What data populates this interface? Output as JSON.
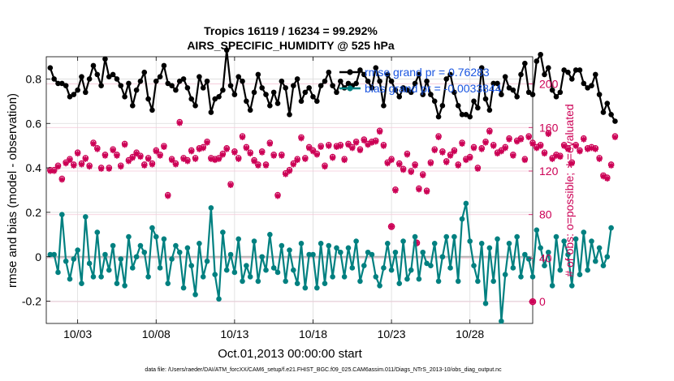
{
  "colors": {
    "rmse": "#000000",
    "bias": "#008080",
    "obs": "#cc0055",
    "grid": "#dcdcdc",
    "legend_text": "#1a55e0"
  },
  "chart_data": {
    "type": "line",
    "title_line1": "Tropics 16119 / 16234 = 99.292%",
    "title_line2": "AIRS_SPECIFIC_HUMIDITY @ 525 hPa",
    "ylabel_left": "rmse and bias (model - observation)",
    "ylabel_right": "# of obs: o=possible; ∗=evaluated",
    "xlabel": "Oct.01,2013 00:00:00 start",
    "footer": "data file: /Users/raeder/DAI/ATM_forcXX/CAM6_setup/f.e21.FHIST_BGC.f09_025.CAM6assim.011/Diags_NTrS_2013-10/obs_diag_output.nc",
    "xlim": [
      1.0,
      32.0
    ],
    "ylim_left": [
      -0.3,
      0.9
    ],
    "ylim_right": [
      -20,
      225
    ],
    "x_tick_values": [
      3,
      8,
      13,
      18,
      23,
      28
    ],
    "x_tick_labels": [
      "10/03",
      "10/08",
      "10/13",
      "10/18",
      "10/23",
      "10/28"
    ],
    "y_left_ticks": [
      -0.2,
      0,
      0.2,
      0.4,
      0.6,
      0.8
    ],
    "y_left_tick_labels": [
      "-0.2",
      "0",
      "0.2",
      "0.4",
      "0.6",
      "0.8"
    ],
    "y_right_ticks": [
      0,
      40,
      80,
      120,
      160,
      200
    ],
    "y_right_tick_labels": [
      "0",
      "40",
      "80",
      "120",
      "160",
      "200"
    ],
    "legend": [
      {
        "label": "rmse grand pr = 0.76283"
      },
      {
        "label": "bias grand pr = -0.0033844"
      }
    ],
    "x_start": 1.25,
    "x_step": 0.25,
    "series": [
      {
        "name": "rmse",
        "axis": "left",
        "values": [
          0.85,
          0.8,
          0.78,
          0.78,
          0.77,
          0.72,
          0.73,
          0.75,
          0.81,
          0.74,
          0.8,
          0.86,
          0.82,
          0.77,
          0.89,
          0.81,
          0.82,
          0.8,
          0.77,
          0.72,
          0.78,
          0.68,
          0.75,
          0.79,
          0.83,
          0.71,
          0.66,
          0.79,
          0.81,
          0.86,
          0.78,
          0.77,
          0.75,
          0.79,
          0.8,
          0.76,
          0.71,
          0.68,
          0.81,
          0.76,
          0.79,
          0.65,
          0.71,
          0.72,
          0.75,
          0.93,
          0.77,
          0.73,
          0.81,
          0.79,
          0.7,
          0.66,
          0.74,
          0.82,
          0.76,
          0.73,
          0.68,
          0.74,
          0.69,
          0.79,
          0.76,
          0.64,
          0.77,
          0.8,
          0.7,
          0.74,
          0.76,
          0.72,
          0.7,
          0.77,
          0.79,
          0.83,
          0.77,
          0.74,
          0.79,
          0.76,
          0.78,
          0.77,
          0.78,
          0.84,
          0.82,
          0.79,
          0.76,
          0.85,
          0.79,
          0.68,
          0.82,
          0.79,
          0.75,
          0.72,
          0.76,
          0.75,
          0.74,
          0.78,
          0.82,
          0.73,
          0.79,
          0.73,
          0.7,
          0.63,
          0.68,
          0.8,
          0.82,
          0.74,
          0.68,
          0.64,
          0.64,
          0.63,
          0.7,
          0.67,
          0.85,
          0.71,
          0.66,
          0.78,
          0.78,
          0.73,
          0.81,
          0.76,
          0.75,
          0.72,
          0.82,
          0.87,
          0.74,
          0.73,
          0.88,
          0.91,
          0.82,
          0.85,
          0.75,
          0.72,
          0.74,
          0.84,
          0.83,
          0.8,
          0.84,
          0.84,
          0.78,
          0.76,
          0.77,
          0.82,
          0.73,
          0.65,
          0.69,
          0.64,
          0.61
        ]
      },
      {
        "name": "bias",
        "axis": "left",
        "values": [
          0.01,
          0.01,
          -0.07,
          0.19,
          -0.02,
          -0.1,
          -0.01,
          0.03,
          -0.12,
          0.18,
          -0.03,
          -0.09,
          0.11,
          -0.09,
          0.01,
          -0.06,
          0.05,
          -0.12,
          -0.01,
          -0.13,
          0.09,
          -0.05,
          0.0,
          0.05,
          0.02,
          -0.09,
          0.13,
          0.09,
          -0.05,
          0.08,
          -0.12,
          -0.01,
          0.05,
          0.02,
          -0.14,
          0.04,
          -0.04,
          -0.17,
          0.06,
          -0.09,
          -0.02,
          0.22,
          -0.08,
          -0.19,
          0.11,
          -0.06,
          0.01,
          -0.07,
          0.08,
          -0.11,
          -0.04,
          -0.09,
          0.07,
          -0.11,
          0.0,
          -0.06,
          0.1,
          -0.05,
          -0.07,
          0.05,
          -0.11,
          0.03,
          -0.06,
          -0.12,
          0.06,
          -0.14,
          0.01,
          0.01,
          -0.14,
          0.06,
          -0.12,
          0.05,
          -0.09,
          0.04,
          0.02,
          -0.09,
          0.04,
          -0.05,
          0.07,
          -0.11,
          -0.04,
          0.02,
          0.01,
          -0.09,
          -0.13,
          -0.05,
          0.06,
          -0.06,
          0.02,
          -0.12,
          0.07,
          -0.1,
          -0.06,
          0.09,
          -0.1,
          0.02,
          -0.03,
          -0.04,
          0.06,
          -0.11,
          0.0,
          0.09,
          -0.05,
          0.09,
          -0.11,
          0.17,
          0.24,
          0.07,
          -0.04,
          -0.11,
          0.06,
          -0.21,
          0.04,
          -0.11,
          0.08,
          -0.29,
          -0.08,
          0.06,
          -0.05,
          0.09,
          -0.09,
          0.01,
          -0.01,
          -0.09,
          0.12,
          0.04,
          -0.04,
          0.02,
          -0.13,
          0.09,
          -0.06,
          0.07,
          0.01,
          -0.13,
          0.08,
          -0.08,
          0.11,
          -0.06,
          0.07,
          -0.02,
          0.04,
          -0.04,
          0.0,
          0.13
        ]
      },
      {
        "name": "obs_possible",
        "axis": "right",
        "values": [
          121,
          121,
          125,
          113,
          128,
          131,
          126,
          137,
          127,
          132,
          125,
          146,
          141,
          123,
          135,
          123,
          140,
          135,
          125,
          145,
          130,
          133,
          137,
          134,
          126,
          132,
          127,
          139,
          135,
          143,
          98,
          131,
          127,
          165,
          132,
          130,
          139,
          132,
          141,
          142,
          147,
          132,
          131,
          132,
          136,
          141,
          108,
          138,
          132,
          152,
          142,
          137,
          130,
          126,
          138,
          126,
          146,
          135,
          98,
          135,
          118,
          121,
          127,
          131,
          151,
          132,
          142,
          139,
          136,
          143,
          125,
          144,
          133,
          143,
          144,
          131,
          145,
          142,
          147,
          140,
          149,
          145,
          147,
          148,
          157,
          144,
          128,
          131,
          103,
          127,
          122,
          136,
          120,
          126,
          104,
          117,
          102,
          128,
          140,
          152,
          138,
          129,
          135,
          139,
          126,
          146,
          131,
          133,
          142,
          123,
          141,
          147,
          157,
          144,
          137,
          139,
          142,
          150,
          135,
          148,
          150,
          131,
          152,
          146,
          142,
          144,
          137,
          155,
          132,
          135,
          134,
          144,
          141,
          128,
          144,
          139,
          150,
          141,
          142,
          141,
          132,
          116,
          114,
          126,
          152
        ]
      },
      {
        "name": "obs_evaluated",
        "axis": "right",
        "values": [
          120,
          120,
          124,
          112,
          127,
          130,
          125,
          136,
          126,
          131,
          124,
          145,
          140,
          122,
          134,
          122,
          139,
          134,
          124,
          144,
          129,
          132,
          136,
          133,
          125,
          131,
          126,
          138,
          134,
          142,
          97,
          130,
          126,
          164,
          131,
          129,
          138,
          131,
          140,
          141,
          146,
          131,
          130,
          131,
          135,
          140,
          107,
          137,
          131,
          151,
          141,
          136,
          129,
          125,
          137,
          125,
          145,
          134,
          97,
          134,
          117,
          120,
          126,
          130,
          150,
          131,
          141,
          138,
          135,
          142,
          124,
          143,
          132,
          142,
          143,
          130,
          144,
          141,
          146,
          139,
          148,
          144,
          146,
          147,
          156,
          143,
          127,
          130,
          102,
          126,
          121,
          135,
          119,
          125,
          103,
          116,
          101,
          127,
          139,
          151,
          137,
          128,
          134,
          138,
          125,
          145,
          130,
          132,
          141,
          122,
          140,
          146,
          156,
          143,
          136,
          138,
          141,
          149,
          134,
          147,
          149,
          130,
          151,
          145,
          141,
          143,
          136,
          154,
          131,
          134,
          133,
          143,
          140,
          127,
          143,
          138,
          149,
          140,
          141,
          140,
          131,
          115,
          113,
          125,
          151
        ]
      }
    ],
    "obs_markers": [
      {
        "type": "possible",
        "day": 23.0,
        "value": 69
      },
      {
        "type": "evaluated",
        "day": 23.0,
        "value": 69
      },
      {
        "type": "possible",
        "day": 24.6,
        "value": 54
      },
      {
        "type": "evaluated",
        "day": 24.6,
        "value": 54
      },
      {
        "type": "possible",
        "day": 32.0,
        "value": 0
      },
      {
        "type": "evaluated",
        "day": 32.0,
        "value": 0
      }
    ]
  }
}
